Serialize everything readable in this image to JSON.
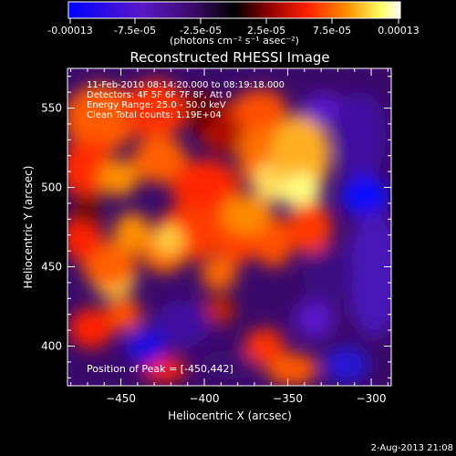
{
  "colorbar": {
    "tick_labels": [
      "-0.00013",
      "-7.5e-05",
      "-2.5e-05",
      "2.5e-05",
      "7.5e-05",
      "0.00013"
    ],
    "unit_label": "(photons cm⁻² s⁻¹ asec⁻²)",
    "range": [
      -0.00013,
      0.00013
    ],
    "colors": [
      "#0000ff",
      "#5a18c8",
      "#3a0a66",
      "#000000",
      "#7a0000",
      "#ff1a00",
      "#ff8c00",
      "#ffff66",
      "#ffffff"
    ]
  },
  "chart_data": {
    "type": "heatmap",
    "title": "Reconstructed RHESSI Image",
    "xlabel": "Heliocentric X (arcsec)",
    "ylabel": "Heliocentric Y (arcsec)",
    "xlim": [
      -482,
      -288
    ],
    "ylim": [
      375,
      575
    ],
    "x_ticks": [
      -450,
      -400,
      -350,
      -300
    ],
    "y_ticks": [
      400,
      450,
      500,
      550
    ],
    "annotations": [
      "11-Feb-2010 08:14:20.000 to 08:19:18.000",
      "Detectors: 4F 5F 6F 7F 8F, Att 0",
      "Energy Range: 25.0 - 50.0 keV",
      "Clean     Total counts: 1.19E+04"
    ],
    "peak_label": "Position of Peak = [-450,442]",
    "peak": [
      -450,
      442
    ],
    "grid": false
  },
  "footer": {
    "date": "2-Aug-2013 21:08"
  }
}
